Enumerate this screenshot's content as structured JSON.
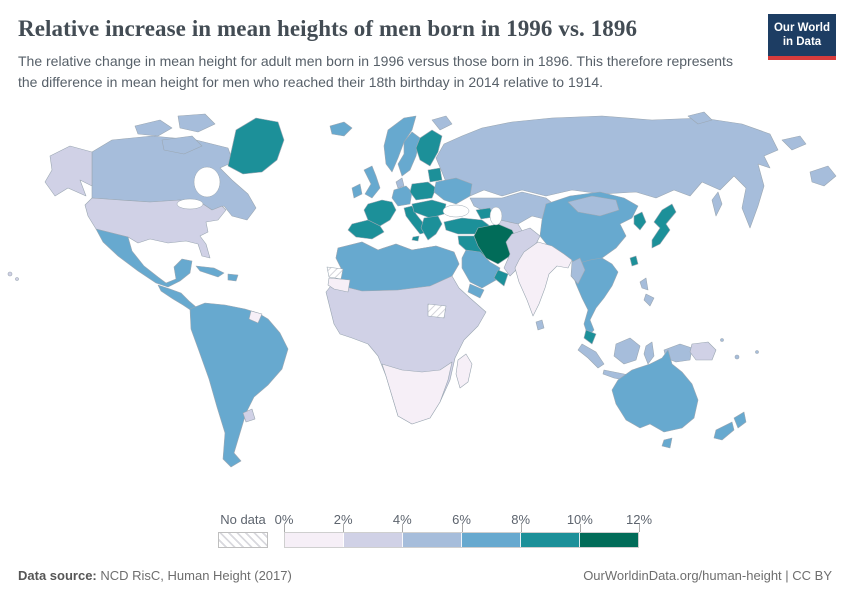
{
  "header": {
    "title": "Relative increase in mean heights of men born in 1996 vs. 1896",
    "subtitle": "The relative change in mean height for adult men born in 1996 versus those born in 1896. This therefore represents the difference in mean height for men who reached their 18th birthday in 2014 relative to 1914.",
    "logo": {
      "line1": "Our World",
      "line2": "in Data",
      "bg": "#1d3d63",
      "accent": "#d73c3c"
    }
  },
  "chart_data": {
    "type": "choropleth_map",
    "title": "Relative increase in mean heights of men born in 1996 vs. 1896",
    "unit": "%",
    "legend_position": "bottom",
    "bin_ranges": [
      "0-2%",
      "2-4%",
      "4-6%",
      "6-8%",
      "8-10%",
      "10-12%"
    ],
    "legend_bins": [
      {
        "min": 0,
        "max": 2,
        "color": "#f6eff7"
      },
      {
        "min": 2,
        "max": 4,
        "color": "#d0d1e6"
      },
      {
        "min": 4,
        "max": 6,
        "color": "#a6bddb"
      },
      {
        "min": 6,
        "max": 8,
        "color": "#67a9cf"
      },
      {
        "min": 8,
        "max": 10,
        "color": "#1c9099"
      },
      {
        "min": 10,
        "max": 12,
        "color": "#016c59"
      }
    ],
    "no_data_regions": [
      "western_sahara",
      "south_sudan"
    ],
    "regions": {
      "alaska": 1,
      "canada": 2,
      "arctic_islands": 2,
      "greenland": 4,
      "usa": 1,
      "hawaii": 1,
      "mexico": 3,
      "central_america": 3,
      "cuba": 3,
      "hispaniola": 3,
      "south_america": 3,
      "guyana": 0,
      "uruguay": 1,
      "iceland": 3,
      "ireland": 3,
      "uk": 3,
      "norway": 3,
      "sweden": 3,
      "finland": 4,
      "denmark": 2,
      "svalbard": 2,
      "germany": 3,
      "poland": 4,
      "baltics": 4,
      "france": 4,
      "spain": 4,
      "italy": 4,
      "central_europe": 4,
      "balkans": 4,
      "ukraine": 3,
      "russia": 2,
      "sakhalin": 2,
      "arctic_russia": 2,
      "chukotka": 2,
      "kazakhstan": 2,
      "central_asia": 1,
      "caucasus": 4,
      "turkey": 4,
      "levant_iraq": 4,
      "iran": 5,
      "saudi_arabia": 3,
      "yemen": 3,
      "oman": 4,
      "afghanistan_pakistan": 1,
      "india": 0,
      "sri_lanka": 2,
      "china": 3,
      "mongolia": 2,
      "korea": 4,
      "japan": 4,
      "taiwan": 4,
      "indochina": 3,
      "myanmar": 2,
      "malaysia": 4,
      "sumatra": 2,
      "java": 2,
      "borneo": 2,
      "sulawesi": 2,
      "new_guinea_west": 2,
      "png": 1,
      "philippines": 2,
      "pacific_islands": 2,
      "australia": 3,
      "tasmania": 3,
      "new_zealand": 3,
      "africa": 1,
      "north_africa": 3,
      "mauritania": 0,
      "southern_africa": 0,
      "madagascar": 0
    }
  },
  "legend": {
    "no_data_label": "No data",
    "tick_labels": [
      "0%",
      "2%",
      "4%",
      "6%",
      "8%",
      "10%",
      "12%"
    ]
  },
  "footer": {
    "datasource_label": "Data source:",
    "datasource_value": " NCD RisC, Human Height (2017)",
    "link": "OurWorldinData.org/human-height | CC BY"
  }
}
